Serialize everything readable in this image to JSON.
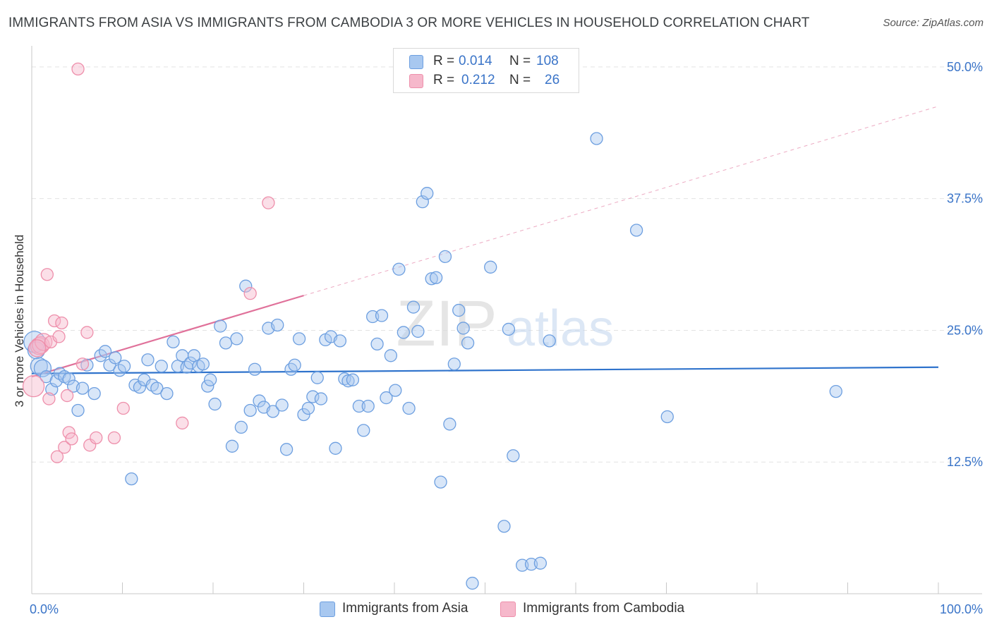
{
  "chart_data": {
    "type": "scatter",
    "title": "IMMIGRANTS FROM ASIA VS IMMIGRANTS FROM CAMBODIA 3 OR MORE VEHICLES IN HOUSEHOLD CORRELATION CHART",
    "source": "Source: ZipAtlas.com",
    "watermark": {
      "zip": "ZIP",
      "atlas": "atlas"
    },
    "ylabel": "3 or more Vehicles in Household",
    "xlim": [
      0,
      100
    ],
    "ylim": [
      0,
      52
    ],
    "x_tick_labels": [
      {
        "value": 0,
        "label": "0.0%"
      },
      {
        "value": 100,
        "label": "100.0%"
      }
    ],
    "y_tick_labels": [
      {
        "value": 12.5,
        "label": "12.5%"
      },
      {
        "value": 25,
        "label": "25.0%"
      },
      {
        "value": 37.5,
        "label": "37.5%"
      },
      {
        "value": 50,
        "label": "50.0%"
      }
    ],
    "legend": {
      "r_label": "R =",
      "n_label": "N =",
      "rows": [
        {
          "r": "0.014",
          "n": "108"
        },
        {
          "r": "0.212",
          "n": "26"
        }
      ]
    },
    "colors": {
      "asia_fill": "#a8c8f0",
      "asia_stroke": "#6d9fe0",
      "asia_line": "#2f73cc",
      "cambodia_fill": "#f6b8cb",
      "cambodia_stroke": "#ee8fab",
      "cambodia_line": "#e0719a",
      "grid": "#e3e3e3",
      "tick_label": "#3a74c8"
    },
    "series": [
      {
        "name": "Immigrants from Asia",
        "r": 0.014,
        "n": 108,
        "trend": {
          "x0": 0,
          "y0": 20.9,
          "x1": 100,
          "y1": 21.5,
          "dashed_to": 100
        },
        "points": [
          [
            0.3,
            23.9
          ],
          [
            0.5,
            23.1
          ],
          [
            0.8,
            21.6
          ],
          [
            1.2,
            21.4
          ],
          [
            1.6,
            20.6
          ],
          [
            2.2,
            19.4
          ],
          [
            2.7,
            20.2
          ],
          [
            3.1,
            20.9
          ],
          [
            3.6,
            20.6
          ],
          [
            4.1,
            20.4
          ],
          [
            4.6,
            19.7
          ],
          [
            5.1,
            17.4
          ],
          [
            5.6,
            19.5
          ],
          [
            6.1,
            21.7
          ],
          [
            6.9,
            19.0
          ],
          [
            7.6,
            22.6
          ],
          [
            8.1,
            23.0
          ],
          [
            8.6,
            21.7
          ],
          [
            9.2,
            22.4
          ],
          [
            9.7,
            21.2
          ],
          [
            10.2,
            21.6
          ],
          [
            11.0,
            10.9
          ],
          [
            11.4,
            19.8
          ],
          [
            11.9,
            19.6
          ],
          [
            12.4,
            20.3
          ],
          [
            12.8,
            22.2
          ],
          [
            13.3,
            19.8
          ],
          [
            13.8,
            19.5
          ],
          [
            14.3,
            21.6
          ],
          [
            14.9,
            19.0
          ],
          [
            15.6,
            23.9
          ],
          [
            16.1,
            21.6
          ],
          [
            16.6,
            22.6
          ],
          [
            17.1,
            21.5
          ],
          [
            17.5,
            21.9
          ],
          [
            17.9,
            22.6
          ],
          [
            18.4,
            21.6
          ],
          [
            18.9,
            21.8
          ],
          [
            19.4,
            19.7
          ],
          [
            19.7,
            20.3
          ],
          [
            20.2,
            18.0
          ],
          [
            20.8,
            25.4
          ],
          [
            21.4,
            23.8
          ],
          [
            22.1,
            14.0
          ],
          [
            22.6,
            24.2
          ],
          [
            23.1,
            15.8
          ],
          [
            23.6,
            29.2
          ],
          [
            24.1,
            17.4
          ],
          [
            24.6,
            21.3
          ],
          [
            25.1,
            18.3
          ],
          [
            25.6,
            17.7
          ],
          [
            26.1,
            25.2
          ],
          [
            26.6,
            17.3
          ],
          [
            27.1,
            25.5
          ],
          [
            27.6,
            17.9
          ],
          [
            28.1,
            13.7
          ],
          [
            28.6,
            21.3
          ],
          [
            29.0,
            21.7
          ],
          [
            29.5,
            24.2
          ],
          [
            30.0,
            17.0
          ],
          [
            30.5,
            17.6
          ],
          [
            31.0,
            18.7
          ],
          [
            31.5,
            20.5
          ],
          [
            31.9,
            18.5
          ],
          [
            32.4,
            24.1
          ],
          [
            33.0,
            24.4
          ],
          [
            33.5,
            13.8
          ],
          [
            34.0,
            24.0
          ],
          [
            34.5,
            20.4
          ],
          [
            34.9,
            20.2
          ],
          [
            35.4,
            20.3
          ],
          [
            36.1,
            17.8
          ],
          [
            36.6,
            15.5
          ],
          [
            37.1,
            17.8
          ],
          [
            37.6,
            26.3
          ],
          [
            38.1,
            23.7
          ],
          [
            38.6,
            26.4
          ],
          [
            39.1,
            18.6
          ],
          [
            39.6,
            22.6
          ],
          [
            40.1,
            19.3
          ],
          [
            40.5,
            30.8
          ],
          [
            41.0,
            24.8
          ],
          [
            41.6,
            17.6
          ],
          [
            42.1,
            27.2
          ],
          [
            42.6,
            24.9
          ],
          [
            43.1,
            37.2
          ],
          [
            43.6,
            38.0
          ],
          [
            44.1,
            29.9
          ],
          [
            44.6,
            30.0
          ],
          [
            45.1,
            10.6
          ],
          [
            45.6,
            32.0
          ],
          [
            46.1,
            16.1
          ],
          [
            46.6,
            21.8
          ],
          [
            47.1,
            26.9
          ],
          [
            47.6,
            25.2
          ],
          [
            48.1,
            23.8
          ],
          [
            48.6,
            1.0
          ],
          [
            50.6,
            31.0
          ],
          [
            52.1,
            6.4
          ],
          [
            52.6,
            25.1
          ],
          [
            53.1,
            13.1
          ],
          [
            54.1,
            2.7
          ],
          [
            55.1,
            2.8
          ],
          [
            56.1,
            2.9
          ],
          [
            57.1,
            24.0
          ],
          [
            62.3,
            43.2
          ],
          [
            66.7,
            34.5
          ],
          [
            70.1,
            16.8
          ],
          [
            88.7,
            19.2
          ]
        ]
      },
      {
        "name": "Immigrants from Cambodia",
        "r": 0.212,
        "n": 26,
        "trend": {
          "x0": 0,
          "y0": 20.6,
          "x1": 30,
          "y1": 28.3,
          "dashed_to": 100
        },
        "points": [
          [
            0.2,
            19.7
          ],
          [
            0.8,
            23.5
          ],
          [
            1.0,
            23.6
          ],
          [
            1.3,
            23.9
          ],
          [
            1.7,
            30.3
          ],
          [
            1.9,
            18.5
          ],
          [
            2.1,
            23.9
          ],
          [
            2.5,
            25.9
          ],
          [
            2.8,
            13.0
          ],
          [
            3.0,
            24.4
          ],
          [
            3.3,
            25.7
          ],
          [
            3.6,
            13.9
          ],
          [
            3.9,
            18.8
          ],
          [
            4.1,
            15.3
          ],
          [
            4.4,
            14.7
          ],
          [
            5.1,
            49.8
          ],
          [
            5.6,
            21.8
          ],
          [
            6.1,
            24.8
          ],
          [
            6.4,
            14.1
          ],
          [
            7.1,
            14.8
          ],
          [
            9.1,
            14.8
          ],
          [
            10.1,
            17.6
          ],
          [
            16.6,
            16.2
          ],
          [
            24.1,
            28.5
          ],
          [
            26.1,
            37.1
          ],
          [
            0.6,
            23.3
          ]
        ]
      }
    ]
  },
  "bottom_legend": {
    "asia": "Immigrants from Asia",
    "cambodia": "Immigrants from Cambodia"
  }
}
